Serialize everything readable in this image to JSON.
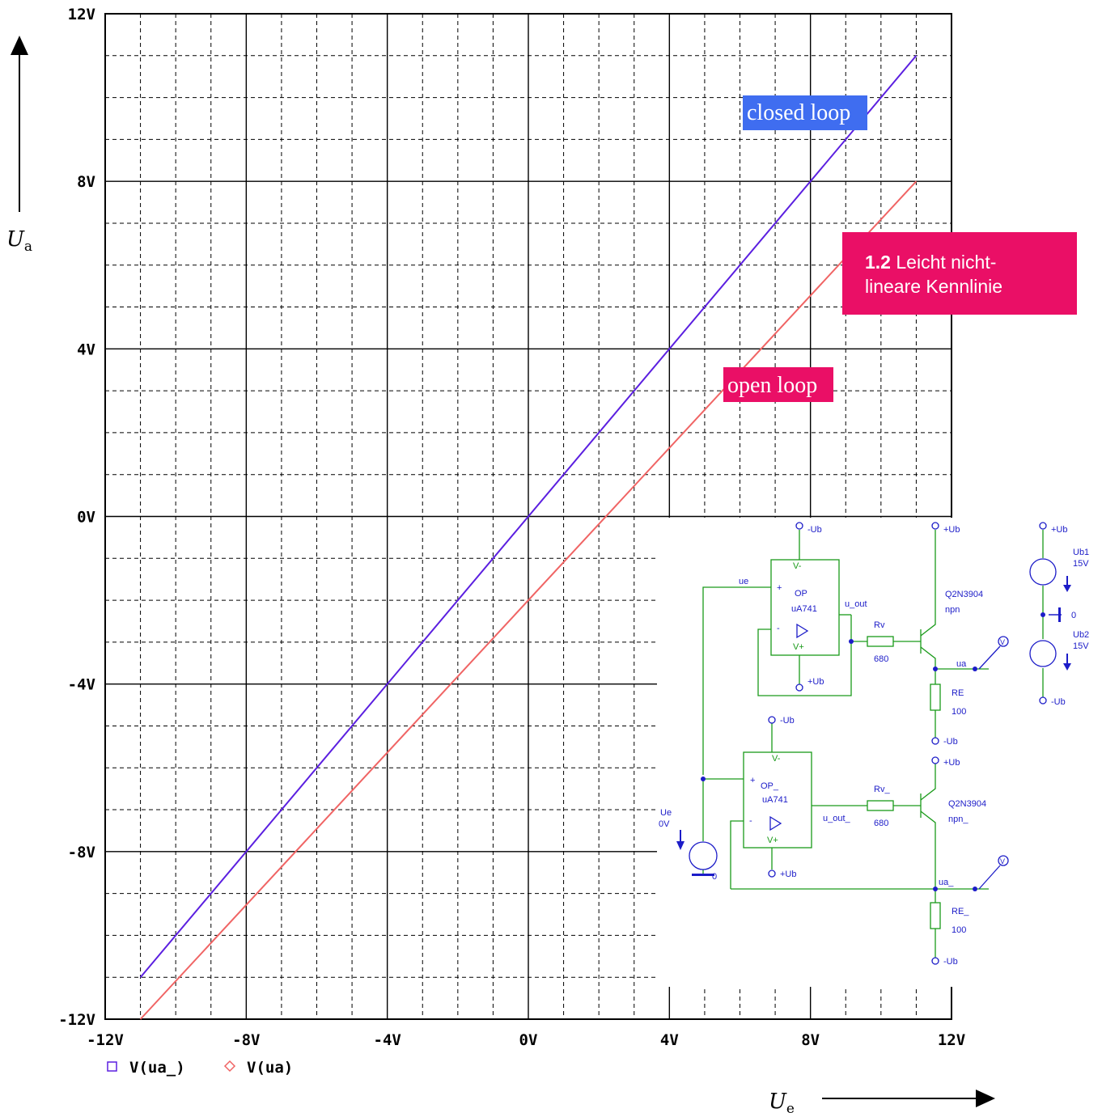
{
  "chart_data": {
    "type": "line",
    "x_tick_labels": [
      "-12V",
      "-8V",
      "-4V",
      "0V",
      "4V",
      "8V",
      "12V"
    ],
    "y_tick_labels": [
      "-12V",
      "-8V",
      "-4V",
      "0V",
      "4V",
      "8V",
      "12V"
    ],
    "xlim": [
      -12,
      12
    ],
    "ylim": [
      -12,
      12
    ],
    "grid": true,
    "series": [
      {
        "name": "V(ua_)",
        "color": "#5b1fe0",
        "marker": "square",
        "x": [
          -11,
          11
        ],
        "y": [
          -11,
          11
        ]
      },
      {
        "name": "V(ua)",
        "color": "#f06464",
        "marker": "diamond",
        "x": [
          -11,
          11
        ],
        "y": [
          -12,
          8
        ]
      }
    ],
    "annotations": {
      "closed": "closed loop",
      "open": "open loop",
      "closed_color": "#3f6df0",
      "open_color": "#ea0f66"
    },
    "axis_labels": {
      "y_letter": "U",
      "y_sub": "a",
      "x_letter": "U",
      "x_sub": "e"
    }
  },
  "callout": {
    "number": "1.2",
    "line1": "Leicht nicht-",
    "line2": "lineare Kennlinie",
    "color": "#ea0f66"
  },
  "schematic": {
    "labels": {
      "neg_ub": "-Ub",
      "pos_ub": "+Ub",
      "ue": "ue",
      "vminus": "V-",
      "vplus": "V+",
      "op": "OP",
      "op2": "OP_",
      "ua741": "uA741",
      "u_out": "u_out",
      "u_out2": "u_out_",
      "rv": "Rv",
      "rv2": "Rv_",
      "r680": "680",
      "q": "Q2N3904",
      "npn": "npn",
      "npn2": "npn_",
      "ua": "ua",
      "ua2": "ua_",
      "re": "RE",
      "re2": "RE_",
      "r100": "100",
      "ub1": "Ub1",
      "ub2": "Ub2",
      "v15": "15V",
      "zero": "0",
      "ue_src": "Ue",
      "v0": "0V",
      "plus": "+",
      "minus": "-",
      "vm": "V"
    },
    "wire_color": "#1a9a1a",
    "text_color": "#1c1cc8"
  }
}
